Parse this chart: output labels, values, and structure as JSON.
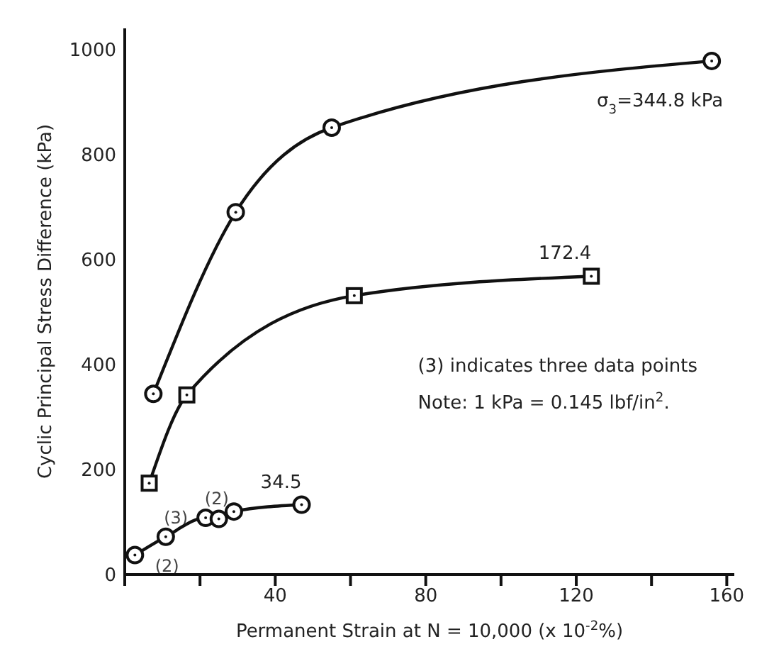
{
  "chart_data": {
    "type": "line",
    "xlabel": "Permanent Strain at N = 10,000 (x 10$^{-2}$%)",
    "ylabel": "Cyclic Principal Stress Difference (kPa)",
    "xlim": [
      0,
      162
    ],
    "ylim": [
      0,
      1040
    ],
    "xticks": [
      {
        "value": 0,
        "label": null
      },
      {
        "value": 20,
        "label": null
      },
      40,
      {
        "value": 60,
        "label": null
      },
      80,
      {
        "value": 100,
        "label": null
      },
      120,
      {
        "value": 140,
        "label": null
      },
      160
    ],
    "yticks": [
      0,
      200,
      400,
      600,
      800,
      1000
    ],
    "line_style": "solid",
    "series": [
      {
        "name": "σ$_{3}$=344.8 kPa",
        "color": "#111111",
        "marker": "circle",
        "x": [
          7.6,
          29.5,
          55,
          156
        ],
        "values": [
          344,
          690,
          851,
          978
        ]
      },
      {
        "name": "172.4",
        "color": "#111111",
        "marker": "square",
        "x": [
          6.5,
          16.5,
          61,
          124
        ],
        "values": [
          174,
          342,
          531,
          568
        ]
      },
      {
        "name": "34.5",
        "color": "#111111",
        "marker": "circle",
        "x": [
          2.7,
          10.9,
          21.5,
          25,
          29,
          47
        ],
        "values": [
          37,
          72,
          108,
          106,
          120,
          133
        ]
      }
    ],
    "annotations": [
      {
        "text": "(2)",
        "x": 2.7,
        "y": 37
      },
      {
        "text": "(3)",
        "x": 10.9,
        "y": 72
      },
      {
        "text": "(2)",
        "x": 21.5,
        "y": 108
      },
      "(3) indicates three data points",
      "Note: 1 kPa = 0.145 lbf/in$^{2}$."
    ]
  }
}
